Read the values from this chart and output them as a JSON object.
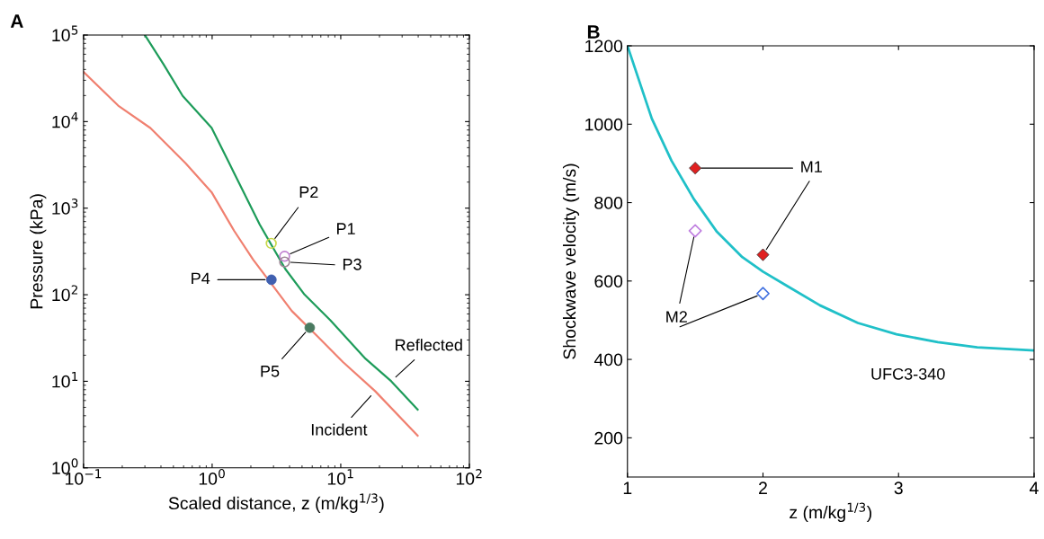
{
  "chart_data": [
    {
      "type": "line",
      "title": "A",
      "xlabel": "Scaled distance, z (m/kg$^{1/3}$)",
      "ylabel": "Pressure (kPa)",
      "log": "xy",
      "marker": "none",
      "xlim": [
        0.1,
        100
      ],
      "ylim": [
        1,
        100000
      ],
      "xticks": [
        {
          "value": 0.1,
          "label": "10$^{−1}$"
        },
        {
          "value": 1,
          "label": "10$^{0}$"
        },
        {
          "value": 10,
          "label": "10$^{1}$"
        },
        {
          "value": 100,
          "label": "10$^{2}$"
        }
      ],
      "yticks": [
        {
          "value": 1,
          "label": "10$^{0}$"
        },
        {
          "value": 10,
          "label": "10$^{1}$"
        },
        {
          "value": 100,
          "label": "10$^{2}$"
        },
        {
          "value": 1000,
          "label": "10$^{3}$"
        },
        {
          "value": 10000,
          "label": "10$^{4}$"
        },
        {
          "value": 100000,
          "label": "10$^{5}$"
        }
      ],
      "series": [
        {
          "name": "Reflected",
          "type": "line",
          "color": "#1e9c5a",
          "x": [
            0.3,
            0.417,
            0.59,
            0.99,
            1.48,
            2.34,
            2.94,
            3.71,
            5.24,
            8.3,
            15.6,
            24.7,
            39.6
          ],
          "values": [
            100000,
            46400,
            19800,
            8500,
            2560,
            650,
            360,
            198,
            100,
            50.6,
            18.2,
            10,
            4.7
          ]
        },
        {
          "name": "Incident",
          "type": "line",
          "color": "#f08070",
          "x": [
            0.1,
            0.186,
            0.331,
            0.622,
            0.99,
            1.48,
            2.08,
            2.94,
            4.16,
            6.6,
            10.4,
            18.5,
            39.6
          ],
          "values": [
            37500,
            15300,
            8430,
            3300,
            1530,
            550,
            255,
            129,
            65,
            33,
            16.7,
            7.7,
            2.35
          ]
        },
        {
          "name": "P2",
          "type": "scatter",
          "marker": "circle",
          "color": "#c8d84a",
          "x": [
            2.88
          ],
          "values": [
            392
          ]
        },
        {
          "name": "P1",
          "type": "scatter",
          "marker": "circle",
          "color": "#c080d0",
          "x": [
            3.66
          ],
          "values": [
            278
          ]
        },
        {
          "name": "P3",
          "type": "scatter",
          "marker": "circle",
          "color": "#a08898",
          "x": [
            3.66
          ],
          "values": [
            239
          ]
        },
        {
          "name": "P4",
          "type": "scatter",
          "marker": "circle",
          "color": "#4060b0",
          "x": [
            2.89
          ],
          "values": [
            149
          ]
        },
        {
          "name": "P5",
          "type": "scatter",
          "marker": "circle",
          "color": "#4a7a60",
          "x": [
            5.74
          ],
          "values": [
            41.6
          ]
        }
      ]
    },
    {
      "type": "line",
      "title": "B",
      "xlabel": "z (m/kg$^{1/3}$)",
      "ylabel": "Shockwave velocity (m/s)",
      "marker": "none",
      "xlim": [
        1,
        4
      ],
      "ylim": [
        100,
        1200
      ],
      "xticks": [
        1,
        2,
        3,
        4
      ],
      "yticks": [
        200,
        400,
        600,
        800,
        1000,
        1200
      ],
      "series": [
        {
          "name": "UFC3-340",
          "type": "line",
          "color": "#20c0c8",
          "x": [
            1,
            1.18,
            1.325,
            1.49,
            1.657,
            1.847,
            2.0,
            2.18,
            2.42,
            2.7,
            2.985,
            3.29,
            3.58,
            4.0
          ],
          "values": [
            1200,
            1014,
            907,
            809,
            727,
            661,
            624,
            587,
            538,
            493,
            464,
            444,
            431,
            423
          ]
        },
        {
          "name": "M1",
          "type": "scatter",
          "marker": "diamond",
          "color": "#e02020",
          "x": [
            1.5,
            2
          ],
          "values": [
            888,
            667
          ]
        },
        {
          "name": "M2",
          "type": "scatter",
          "marker": "diamond",
          "colors": [
            "#c080e0",
            "#4070e0"
          ],
          "x": [
            1.5,
            2
          ],
          "values": [
            728,
            568
          ]
        }
      ]
    }
  ]
}
